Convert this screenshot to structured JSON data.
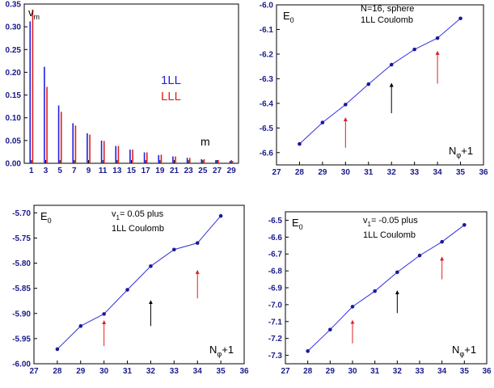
{
  "chart_data": [
    {
      "type": "bar",
      "ylabel": "v",
      "ylabel_sub": "m",
      "xlabel": "m",
      "xlim": [
        0,
        30
      ],
      "ylim": [
        0,
        0.35
      ],
      "xticks": [
        1,
        3,
        5,
        7,
        9,
        11,
        13,
        15,
        17,
        19,
        21,
        23,
        25,
        27,
        29
      ],
      "xtick_labels": [
        "1",
        "3",
        "5",
        "7",
        "9",
        "11",
        "13",
        "15",
        "17",
        "19",
        "21",
        "23",
        "25",
        "27",
        "29"
      ],
      "yticks": [
        0,
        0.05,
        0.1,
        0.15,
        0.2,
        0.25,
        0.3,
        0.35
      ],
      "ytick_labels": [
        "0.00",
        "0.05",
        "0.10",
        "0.15",
        "0.20",
        "0.25",
        "0.30",
        "0.35"
      ],
      "categories": [
        1,
        3,
        5,
        7,
        9,
        11,
        13,
        15,
        17,
        19,
        21,
        23,
        25,
        27,
        29
      ],
      "series": [
        {
          "name": "1LL",
          "color": "#2020e0",
          "values": [
            0.312,
            0.212,
            0.127,
            0.088,
            0.066,
            0.05,
            0.038,
            0.03,
            0.024,
            0.018,
            0.015,
            0.012,
            0.009,
            0.007,
            0.005
          ]
        },
        {
          "name": "LLL",
          "color": "#e02020",
          "values": [
            0.338,
            0.168,
            0.113,
            0.083,
            0.063,
            0.049,
            0.038,
            0.03,
            0.024,
            0.019,
            0.015,
            0.012,
            0.009,
            0.007,
            0.005
          ]
        }
      ]
    },
    {
      "type": "line",
      "ylabel": "E",
      "ylabel_sub": "0",
      "xlabel_main": "N",
      "xlabel_sub": "φ",
      "xlabel_tail": "+1",
      "annotation": [
        "N=16, sphere",
        "1LL Coulomb"
      ],
      "xlim": [
        27,
        36
      ],
      "ylim": [
        -6.65,
        -6.0
      ],
      "xticks": [
        27,
        28,
        29,
        30,
        31,
        32,
        33,
        34,
        35,
        36
      ],
      "xtick_labels": [
        "27",
        "28",
        "29",
        "30",
        "31",
        "32",
        "33",
        "34",
        "35",
        "36"
      ],
      "yticks": [
        -6.0,
        -6.1,
        -6.2,
        -6.3,
        -6.4,
        -6.5,
        -6.6
      ],
      "ytick_labels": [
        "-6.0",
        "-6.1",
        "-6.2",
        "-6.3",
        "-6.4",
        "-6.5",
        "-6.6"
      ],
      "x": [
        28,
        29,
        30,
        31,
        32,
        33,
        34,
        35
      ],
      "y": [
        -6.565,
        -6.478,
        -6.405,
        -6.322,
        -6.243,
        -6.181,
        -6.135,
        -6.055
      ],
      "arrows": [
        {
          "x": 30,
          "y_from": -6.58,
          "y_to": -6.46,
          "color": "#e02020"
        },
        {
          "x": 32,
          "y_from": -6.44,
          "y_to": -6.32,
          "color": "#000000"
        },
        {
          "x": 34,
          "y_from": -6.32,
          "y_to": -6.19,
          "color": "#e02020"
        }
      ]
    },
    {
      "type": "line",
      "ylabel": "E",
      "ylabel_sub": "0",
      "xlabel_main": "N",
      "xlabel_sub": "φ",
      "xlabel_tail": "+1",
      "annotation_main": "v",
      "annotation_sub": "1",
      "annotation_tail": "= 0.05 plus",
      "annotation_line2": "1LL Coulomb",
      "xlim": [
        27,
        36
      ],
      "ylim": [
        -6.0,
        -5.685
      ],
      "xticks": [
        27,
        28,
        29,
        30,
        31,
        32,
        33,
        34,
        35,
        36
      ],
      "xtick_labels": [
        "27",
        "28",
        "29",
        "30",
        "31",
        "32",
        "33",
        "34",
        "35",
        "36"
      ],
      "yticks": [
        -5.7,
        -5.75,
        -5.8,
        -5.85,
        -5.9,
        -5.95,
        -6.0
      ],
      "ytick_labels": [
        "-5.70",
        "-5.75",
        "-5.80",
        "-5.85",
        "-5.90",
        "-5.95",
        "-6.00"
      ],
      "x": [
        28,
        29,
        30,
        31,
        32,
        33,
        34,
        35
      ],
      "y": [
        -5.971,
        -5.925,
        -5.901,
        -5.853,
        -5.806,
        -5.773,
        -5.76,
        -5.706
      ],
      "arrows": [
        {
          "x": 30,
          "y_from": -5.965,
          "y_to": -5.915,
          "color": "#e02020"
        },
        {
          "x": 32,
          "y_from": -5.925,
          "y_to": -5.875,
          "color": "#000000"
        },
        {
          "x": 34,
          "y_from": -5.87,
          "y_to": -5.815,
          "color": "#e02020"
        }
      ]
    },
    {
      "type": "line",
      "ylabel": "E",
      "ylabel_sub": "0",
      "xlabel_main": "N",
      "xlabel_sub": "φ",
      "xlabel_tail": "+1",
      "annotation_main": "v",
      "annotation_sub": "1",
      "annotation_tail": "= -0.05 plus",
      "annotation_line2": "1LL Coulomb",
      "xlim": [
        27,
        36
      ],
      "ylim": [
        -7.35,
        -6.45
      ],
      "xticks": [
        27,
        28,
        29,
        30,
        31,
        32,
        33,
        34,
        35,
        36
      ],
      "xtick_labels": [
        "27",
        "28",
        "29",
        "30",
        "31",
        "32",
        "33",
        "34",
        "35",
        "36"
      ],
      "yticks": [
        -6.5,
        -6.6,
        -6.7,
        -6.8,
        -6.9,
        -7.0,
        -7.1,
        -7.2,
        -7.3
      ],
      "ytick_labels": [
        "-6.5",
        "-6.6",
        "-6.7",
        "-6.8",
        "-6.9",
        "-7.0",
        "-7.1",
        "-7.2",
        "-7.3"
      ],
      "x": [
        28,
        29,
        30,
        31,
        32,
        33,
        34,
        35
      ],
      "y": [
        -7.275,
        -7.148,
        -7.012,
        -6.92,
        -6.808,
        -6.709,
        -6.628,
        -6.528
      ],
      "arrows": [
        {
          "x": 30,
          "y_from": -7.23,
          "y_to": -7.095,
          "color": "#e02020"
        },
        {
          "x": 32,
          "y_from": -7.05,
          "y_to": -6.92,
          "color": "#000000"
        },
        {
          "x": 34,
          "y_from": -6.85,
          "y_to": -6.72,
          "color": "#e02020"
        }
      ]
    }
  ]
}
